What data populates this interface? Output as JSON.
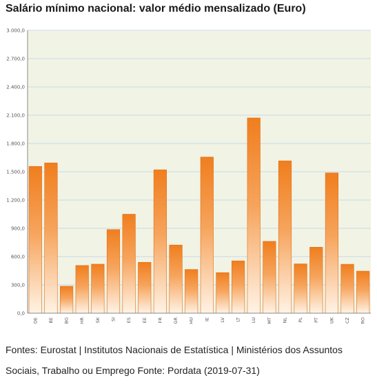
{
  "title": "Salário mínimo nacional: valor médio mensalizado (Euro)",
  "source": "Fontes: Eurostat | Institutos Nacionais de Estatística | Ministérios dos Assuntos Sociais, Trabalho ou Emprego Fonte: Pordata (2019-07-31)",
  "colors": {
    "bar_top": "#f07e1e",
    "bar_bottom": "#fff3e6",
    "bar_edge": "#e0701a",
    "plot_bg": "#f1f3e4",
    "grid": "#c9d9e8",
    "axis": "#888888"
  },
  "chart_data": {
    "type": "bar",
    "title": "Salário mínimo nacional: valor médio mensalizado (Euro)",
    "xlabel": "",
    "ylabel": "",
    "ylim": [
      0,
      3000
    ],
    "yticks": [
      0,
      300,
      600,
      900,
      1200,
      1500,
      1800,
      2100,
      2400,
      2700,
      3000
    ],
    "ytick_labels": [
      "0,0",
      "300,0",
      "600,0",
      "900,0",
      "1.200,0",
      "1.500,0",
      "1.800,0",
      "2.100,0",
      "2.400,0",
      "2.700,0",
      "3.000,0"
    ],
    "grid": true,
    "legend": "none",
    "categories": [
      "DE",
      "BE",
      "BG",
      "HR",
      "SK",
      "SI",
      "ES",
      "EE",
      "FR",
      "GR",
      "HU",
      "IE",
      "LV",
      "LT",
      "LU",
      "MT",
      "NL",
      "PL",
      "PT",
      "UK",
      "CZ",
      "RO"
    ],
    "values": [
      1557,
      1594,
      286,
      506,
      520,
      887,
      1050,
      540,
      1521,
      723,
      464,
      1656,
      430,
      555,
      2071,
      762,
      1616,
      523,
      700,
      1488,
      519,
      446
    ]
  }
}
